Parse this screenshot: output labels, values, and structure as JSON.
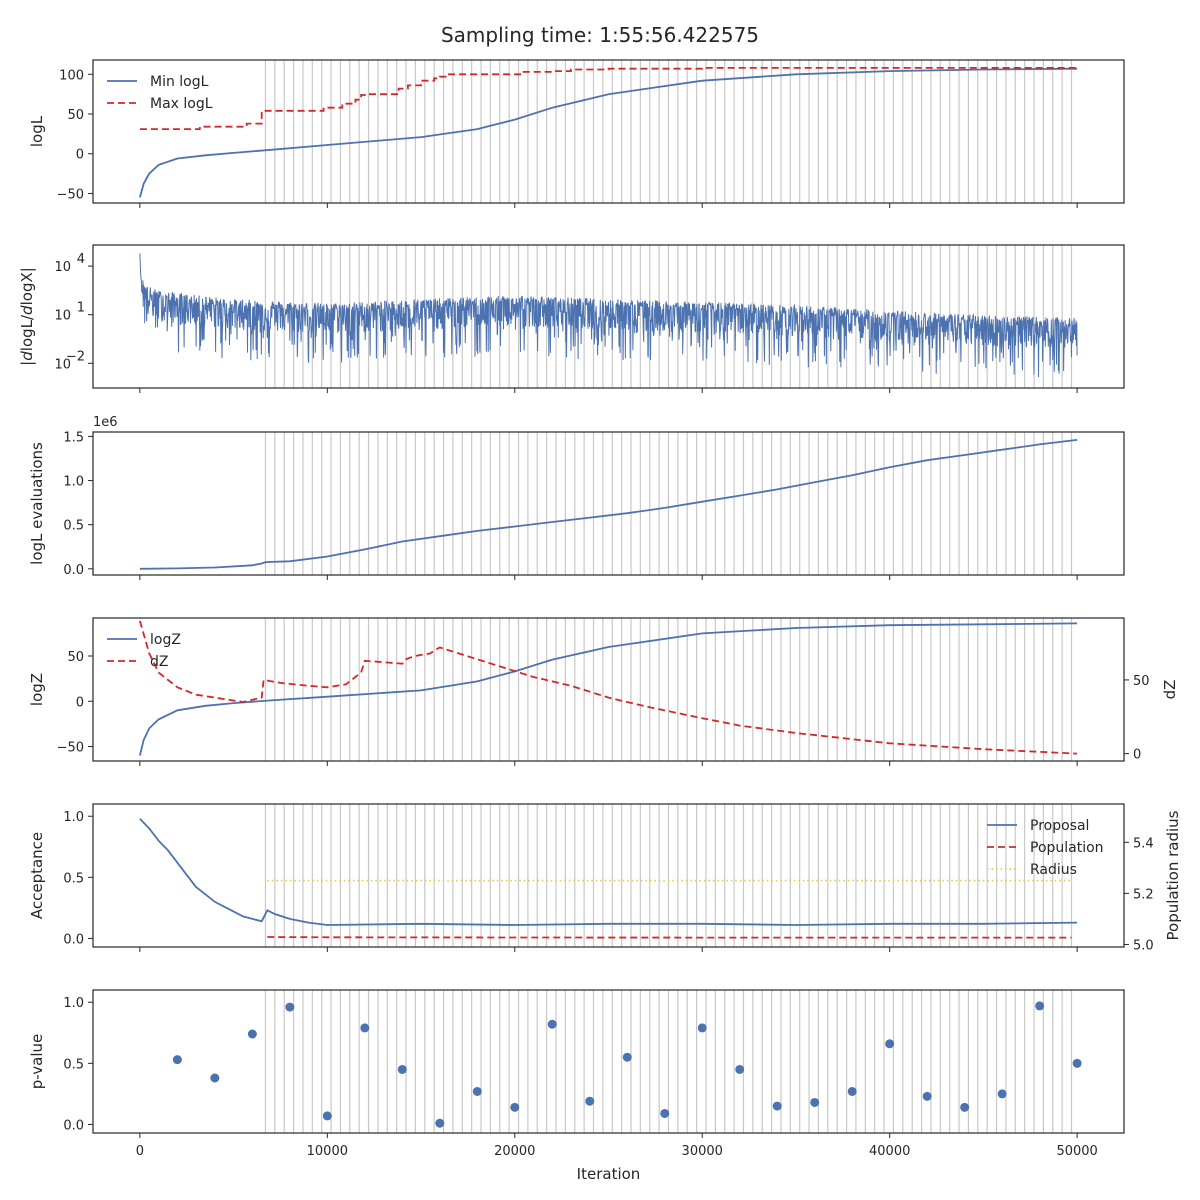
{
  "title": "Sampling time: 1:55:56.422575",
  "colors": {
    "blue": "#4c72b0",
    "red": "#d62728",
    "gold": "#e6c84a",
    "grid": "#c8c8c8",
    "text": "#262626"
  },
  "chart_data": [
    {
      "type": "line",
      "ylabel": "logL",
      "xlim": [
        -2500,
        52500
      ],
      "ylim": [
        -62,
        118
      ],
      "yticks": [
        -50,
        0,
        50,
        100
      ],
      "yticklabels": [
        "−50",
        "0",
        "50",
        "100"
      ],
      "legend_placement": "top-left",
      "series": [
        {
          "name": "Min logL",
          "style": "solid",
          "color": "#4c72b0",
          "x": [
            0,
            200,
            500,
            1000,
            2000,
            3500,
            5000,
            7000,
            10000,
            15000,
            18000,
            20000,
            22000,
            25000,
            30000,
            35000,
            40000,
            45000,
            50000
          ],
          "y": [
            -55,
            -38,
            -25,
            -14,
            -6,
            -2,
            1,
            5,
            11,
            21,
            31,
            43,
            58,
            75,
            92,
            100,
            104,
            106,
            107
          ]
        },
        {
          "name": "Max logL",
          "style": "dashed",
          "color": "#d62728",
          "x": [
            0,
            3200,
            3200,
            5700,
            5700,
            6500,
            6500,
            9800,
            9800,
            10800,
            10800,
            11500,
            11500,
            11800,
            11800,
            12200,
            12200,
            13800,
            13800,
            14300,
            14300,
            15000,
            15000,
            15700,
            15700,
            16000,
            16000,
            16400,
            16400,
            20400,
            20400,
            22000,
            22000,
            23000,
            23000,
            25000,
            25000,
            30000,
            30000,
            35000,
            35000,
            50000
          ],
          "y": [
            31,
            31,
            34,
            34,
            38,
            38,
            54,
            54,
            58,
            58,
            63,
            63,
            68,
            68,
            74,
            74,
            75,
            75,
            82,
            82,
            86,
            86,
            92,
            92,
            95,
            95,
            97,
            97,
            100,
            100,
            103,
            103,
            104,
            104,
            106,
            106,
            107,
            107,
            108,
            108,
            108,
            108
          ]
        }
      ]
    },
    {
      "type": "line",
      "ylabel": "|dlogL/dlogX|",
      "yscale": "log",
      "xlim": [
        -2500,
        52500
      ],
      "ylim": [
        0.0003,
        200000
      ],
      "yticks": [
        0.01,
        10,
        10000
      ],
      "yticklabels": [
        "10",
        "10",
        "10"
      ],
      "ytickexponents": [
        "−2",
        "1",
        "4"
      ],
      "series": [
        {
          "name": "",
          "style": "solid",
          "color": "#4c72b0",
          "noisy": true,
          "x": [
            0,
            50,
            150,
            400,
            1000,
            2500,
            5000,
            10000,
            15000,
            20000,
            25000,
            30000,
            35000,
            40000,
            45000,
            50000
          ],
          "y": [
            30000,
            1500,
            300,
            100,
            50,
            30,
            15,
            8,
            15,
            25,
            15,
            10,
            6,
            3,
            1.5,
            1
          ]
        }
      ]
    },
    {
      "type": "line",
      "ylabel": "logL evaluations",
      "offset_text": "1e6",
      "xlim": [
        -2500,
        52500
      ],
      "ylim": [
        -0.07,
        1.55
      ],
      "yticks": [
        0,
        0.5,
        1.0,
        1.5
      ],
      "yticklabels": [
        "0.0",
        "0.5",
        "1.0",
        "1.5"
      ],
      "series": [
        {
          "name": "",
          "style": "solid",
          "color": "#4c72b0",
          "x": [
            0,
            2000,
            4000,
            6000,
            6500,
            6700,
            7000,
            8000,
            10000,
            12000,
            14000,
            16000,
            18000,
            20000,
            22000,
            24000,
            26000,
            28000,
            30000,
            32000,
            34000,
            36000,
            38000,
            40000,
            42000,
            44000,
            46000,
            48000,
            50000
          ],
          "y": [
            0.0,
            0.005,
            0.015,
            0.04,
            0.06,
            0.075,
            0.078,
            0.085,
            0.14,
            0.22,
            0.31,
            0.37,
            0.43,
            0.48,
            0.53,
            0.58,
            0.63,
            0.69,
            0.76,
            0.83,
            0.9,
            0.98,
            1.06,
            1.15,
            1.23,
            1.29,
            1.35,
            1.41,
            1.46
          ]
        }
      ]
    },
    {
      "type": "line",
      "ylabel": "logZ",
      "ylabel_right": "dZ",
      "xlim": [
        -2500,
        52500
      ],
      "ylim": [
        -66,
        92
      ],
      "yticks": [
        -50,
        0,
        50
      ],
      "yticklabels": [
        "−50",
        "0",
        "50"
      ],
      "ylim_right": [
        -5,
        92
      ],
      "yticks_right": [
        0,
        50
      ],
      "yticklabels_right": [
        "0",
        "50"
      ],
      "legend_placement": "top-left",
      "series": [
        {
          "name": "logZ",
          "style": "solid",
          "color": "#4c72b0",
          "axis": "left",
          "x": [
            0,
            200,
            500,
            1000,
            2000,
            3500,
            5000,
            7000,
            10000,
            15000,
            18000,
            20000,
            22000,
            25000,
            30000,
            35000,
            40000,
            45000,
            50000
          ],
          "y": [
            -60,
            -43,
            -30,
            -20,
            -10,
            -5,
            -2,
            1,
            5,
            12,
            22,
            33,
            46,
            60,
            75,
            81,
            84,
            85,
            86
          ]
        },
        {
          "name": "dZ",
          "style": "dashed",
          "color": "#d62728",
          "axis": "right",
          "x": [
            0,
            500,
            1000,
            2000,
            3000,
            4000,
            5500,
            6500,
            6600,
            7500,
            9000,
            10000,
            10500,
            11000,
            11500,
            11800,
            12000,
            13000,
            14000,
            14200,
            14600,
            15000,
            15500,
            15700,
            16000,
            16500,
            18000,
            20000,
            21000,
            22000,
            23000,
            24000,
            25000,
            27000,
            30000,
            32000,
            35000,
            40000,
            45000,
            50000
          ],
          "y": [
            90,
            68,
            55,
            45,
            40,
            38,
            35,
            38,
            50,
            48,
            46,
            45,
            46,
            47,
            52,
            55,
            63,
            62,
            61,
            64,
            66,
            67,
            68,
            70,
            72,
            70,
            64,
            56,
            52,
            49,
            46,
            42,
            38,
            32,
            24,
            19,
            14,
            7,
            3,
            0
          ]
        }
      ]
    },
    {
      "type": "line",
      "ylabel": "Acceptance",
      "ylabel_right": "Population radius",
      "xlim": [
        -2500,
        52500
      ],
      "ylim": [
        -0.07,
        1.1
      ],
      "yticks": [
        0,
        0.5,
        1.0
      ],
      "yticklabels": [
        "0.0",
        "0.5",
        "1.0"
      ],
      "ylim_right": [
        4.99,
        5.55
      ],
      "yticks_right": [
        5.0,
        5.2,
        5.4
      ],
      "yticklabels_right": [
        "5.0",
        "5.2",
        "5.4"
      ],
      "legend_placement": "top-right",
      "series": [
        {
          "name": "Proposal",
          "style": "solid",
          "color": "#4c72b0",
          "axis": "left",
          "x": [
            0,
            500,
            1000,
            1500,
            2000,
            2500,
            3000,
            3500,
            4000,
            4500,
            5000,
            5500,
            6000,
            6500,
            6800,
            7200,
            8000,
            9000,
            10000,
            15000,
            20000,
            25000,
            30000,
            35000,
            40000,
            45000,
            50000
          ],
          "y": [
            0.98,
            0.9,
            0.8,
            0.72,
            0.62,
            0.52,
            0.42,
            0.36,
            0.3,
            0.26,
            0.22,
            0.18,
            0.16,
            0.14,
            0.23,
            0.2,
            0.16,
            0.13,
            0.11,
            0.12,
            0.11,
            0.12,
            0.12,
            0.11,
            0.12,
            0.12,
            0.13
          ]
        },
        {
          "name": "Population",
          "style": "dashed",
          "color": "#d62728",
          "axis": "left",
          "x": [
            6800,
            10000,
            20000,
            30000,
            40000,
            49700
          ],
          "y": [
            0.012,
            0.009,
            0.008,
            0.007,
            0.007,
            0.007
          ]
        },
        {
          "name": "Radius",
          "style": "dotted",
          "color": "#e6c84a",
          "axis": "right",
          "x": [
            6800,
            49700
          ],
          "y": [
            5.25,
            5.25
          ]
        }
      ]
    },
    {
      "type": "scatter",
      "ylabel": "p-value",
      "xlabel": "Iteration",
      "xlim": [
        -2500,
        52500
      ],
      "ylim": [
        -0.07,
        1.1
      ],
      "yticks": [
        0,
        0.5,
        1.0
      ],
      "yticklabels": [
        "0.0",
        "0.5",
        "1.0"
      ],
      "xticks": [
        0,
        10000,
        20000,
        30000,
        40000,
        50000
      ],
      "xticklabels": [
        "0",
        "10000",
        "20000",
        "30000",
        "40000",
        "50000"
      ],
      "series": [
        {
          "name": "",
          "color": "#4c72b0",
          "x": [
            2000,
            4000,
            6000,
            8000,
            10000,
            12000,
            14000,
            16000,
            18000,
            20000,
            22000,
            24000,
            26000,
            28000,
            30000,
            32000,
            34000,
            36000,
            38000,
            40000,
            42000,
            44000,
            46000,
            48000,
            50000
          ],
          "y": [
            0.53,
            0.38,
            0.74,
            0.96,
            0.07,
            0.79,
            0.45,
            0.01,
            0.27,
            0.14,
            0.82,
            0.19,
            0.55,
            0.09,
            0.79,
            0.45,
            0.15,
            0.18,
            0.27,
            0.66,
            0.23,
            0.14,
            0.25,
            0.97,
            0.5
          ]
        }
      ]
    }
  ],
  "vlines": {
    "start": 6700,
    "end": 50000,
    "step": 500
  }
}
